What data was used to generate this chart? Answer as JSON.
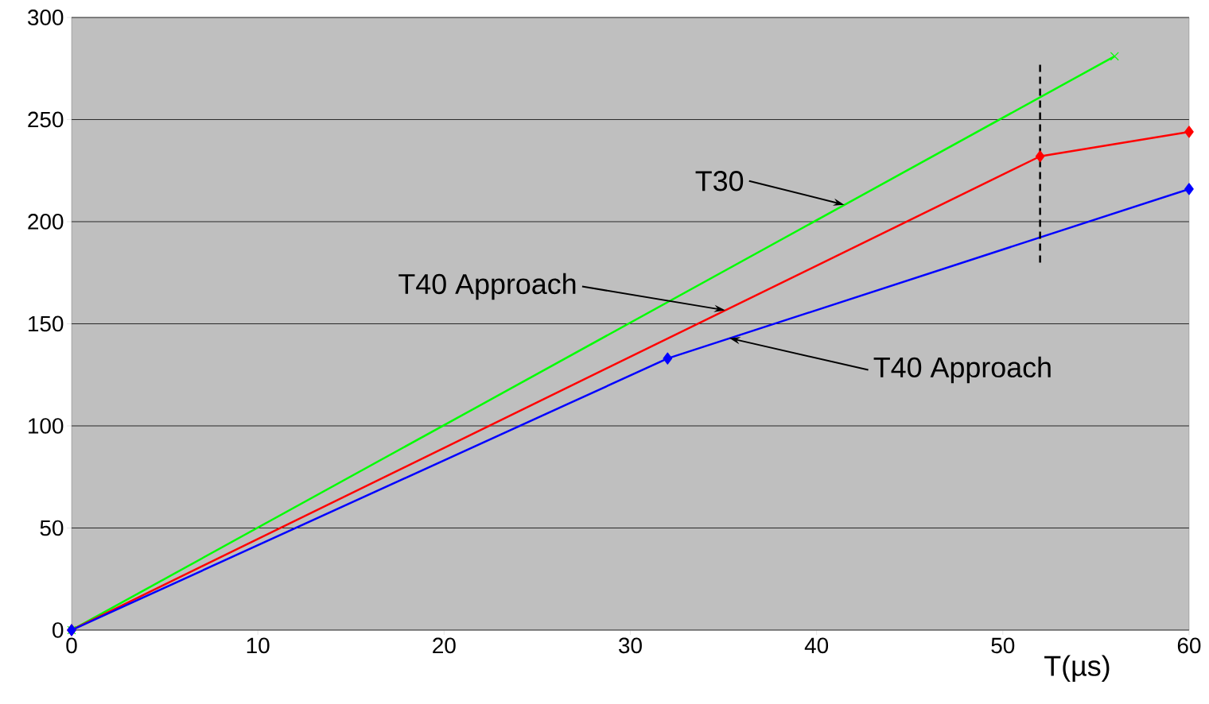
{
  "chart_data": {
    "type": "line",
    "xlabel": "T(µs)",
    "xlim": [
      0,
      60
    ],
    "ylim": [
      0,
      300
    ],
    "xticks": [
      0,
      10,
      20,
      30,
      40,
      50,
      60
    ],
    "yticks": [
      0,
      50,
      100,
      150,
      200,
      250,
      300
    ],
    "grid": "y",
    "line_style": "solid",
    "series": [
      {
        "color": "#00ff00",
        "x": [
          0,
          56
        ],
        "values": [
          0,
          281
        ],
        "marker": "cross"
      },
      {
        "color": "#ff0000",
        "x": [
          0,
          52,
          60
        ],
        "values": [
          0,
          232,
          244
        ],
        "marker": "diamond"
      },
      {
        "color": "#0000ff",
        "x": [
          0,
          32,
          60
        ],
        "values": [
          0,
          133,
          216
        ],
        "marker": "diamond"
      },
      {
        "color": "#000000",
        "x": [
          52,
          52
        ],
        "values": [
          180,
          278
        ],
        "marker": "none",
        "line_style": "dashed"
      }
    ],
    "annotations": [
      {
        "text": "T30",
        "x": 41.5,
        "y": 208.25
      },
      {
        "text": "T40 Approach",
        "x": 35.1,
        "y": 156.6
      },
      {
        "text": "T40 Approach",
        "x": 35.3,
        "y": 143
      }
    ]
  }
}
